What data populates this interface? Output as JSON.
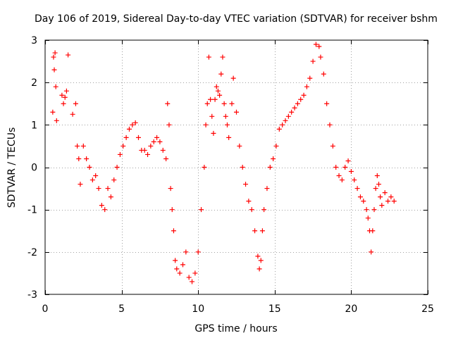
{
  "chart_data": {
    "type": "scatter",
    "title": "Day 106 of 2019, Sidereal Day-to-day VTEC variation (SDTVAR) for receiver bshm",
    "xlabel": "GPS time / hours",
    "ylabel": "SDTVAR / TECUs",
    "xlim": [
      0,
      25
    ],
    "ylim": [
      -3,
      3
    ],
    "xticks": [
      0,
      5,
      10,
      15,
      20,
      25
    ],
    "yticks": [
      -3,
      -2,
      -1,
      0,
      1,
      2,
      3
    ],
    "grid": true,
    "marker": "+",
    "color": "#ff0000",
    "series": [
      {
        "name": "SDTVAR",
        "points": [
          [
            0.5,
            1.3
          ],
          [
            0.55,
            2.6
          ],
          [
            0.6,
            2.3
          ],
          [
            0.65,
            2.7
          ],
          [
            0.7,
            1.9
          ],
          [
            0.75,
            1.1
          ],
          [
            1.1,
            1.7
          ],
          [
            1.2,
            1.5
          ],
          [
            1.3,
            1.65
          ],
          [
            1.4,
            1.8
          ],
          [
            1.5,
            2.65
          ],
          [
            1.8,
            1.25
          ],
          [
            2.0,
            1.5
          ],
          [
            2.1,
            0.5
          ],
          [
            2.2,
            0.2
          ],
          [
            2.3,
            -0.4
          ],
          [
            2.5,
            0.5
          ],
          [
            2.7,
            0.2
          ],
          [
            2.9,
            0.0
          ],
          [
            3.1,
            -0.3
          ],
          [
            3.3,
            -0.2
          ],
          [
            3.5,
            -0.5
          ],
          [
            3.7,
            -0.9
          ],
          [
            3.9,
            -1.0
          ],
          [
            4.1,
            -0.5
          ],
          [
            4.3,
            -0.7
          ],
          [
            4.5,
            -0.3
          ],
          [
            4.7,
            0.0
          ],
          [
            4.9,
            0.3
          ],
          [
            5.1,
            0.5
          ],
          [
            5.3,
            0.7
          ],
          [
            5.5,
            0.9
          ],
          [
            5.7,
            1.0
          ],
          [
            5.9,
            1.05
          ],
          [
            6.1,
            0.7
          ],
          [
            6.3,
            0.4
          ],
          [
            6.5,
            0.4
          ],
          [
            6.7,
            0.3
          ],
          [
            6.9,
            0.5
          ],
          [
            7.1,
            0.6
          ],
          [
            7.3,
            0.7
          ],
          [
            7.5,
            0.6
          ],
          [
            7.7,
            0.4
          ],
          [
            7.9,
            0.2
          ],
          [
            8.0,
            1.5
          ],
          [
            8.1,
            1.0
          ],
          [
            8.2,
            -0.5
          ],
          [
            8.3,
            -1.0
          ],
          [
            8.4,
            -1.5
          ],
          [
            8.5,
            -2.2
          ],
          [
            8.6,
            -2.4
          ],
          [
            8.8,
            -2.5
          ],
          [
            9.0,
            -2.3
          ],
          [
            9.2,
            -2.0
          ],
          [
            9.4,
            -2.6
          ],
          [
            9.6,
            -2.7
          ],
          [
            9.8,
            -2.5
          ],
          [
            10.0,
            -2.0
          ],
          [
            10.2,
            -1.0
          ],
          [
            10.4,
            0.0
          ],
          [
            10.5,
            1.0
          ],
          [
            10.6,
            1.5
          ],
          [
            10.7,
            2.6
          ],
          [
            10.8,
            1.6
          ],
          [
            10.9,
            1.2
          ],
          [
            11.0,
            0.8
          ],
          [
            11.1,
            1.6
          ],
          [
            11.2,
            1.9
          ],
          [
            11.3,
            1.8
          ],
          [
            11.4,
            1.7
          ],
          [
            11.5,
            2.2
          ],
          [
            11.6,
            2.6
          ],
          [
            11.7,
            1.5
          ],
          [
            11.8,
            1.2
          ],
          [
            11.9,
            1.0
          ],
          [
            12.0,
            0.7
          ],
          [
            12.2,
            1.5
          ],
          [
            12.3,
            2.1
          ],
          [
            12.5,
            1.3
          ],
          [
            12.7,
            0.5
          ],
          [
            12.9,
            0.0
          ],
          [
            13.1,
            -0.4
          ],
          [
            13.3,
            -0.8
          ],
          [
            13.5,
            -1.0
          ],
          [
            13.7,
            -1.5
          ],
          [
            13.9,
            -2.1
          ],
          [
            14.0,
            -2.4
          ],
          [
            14.1,
            -2.2
          ],
          [
            14.2,
            -1.5
          ],
          [
            14.3,
            -1.0
          ],
          [
            14.5,
            -0.5
          ],
          [
            14.7,
            0.0
          ],
          [
            14.9,
            0.2
          ],
          [
            15.1,
            0.5
          ],
          [
            15.3,
            0.9
          ],
          [
            15.5,
            1.0
          ],
          [
            15.7,
            1.1
          ],
          [
            15.9,
            1.2
          ],
          [
            16.1,
            1.3
          ],
          [
            16.3,
            1.4
          ],
          [
            16.5,
            1.5
          ],
          [
            16.7,
            1.6
          ],
          [
            16.9,
            1.7
          ],
          [
            17.1,
            1.9
          ],
          [
            17.3,
            2.1
          ],
          [
            17.5,
            2.5
          ],
          [
            17.7,
            2.9
          ],
          [
            17.9,
            2.85
          ],
          [
            18.0,
            2.6
          ],
          [
            18.2,
            2.2
          ],
          [
            18.4,
            1.5
          ],
          [
            18.6,
            1.0
          ],
          [
            18.8,
            0.5
          ],
          [
            19.0,
            0.0
          ],
          [
            19.2,
            -0.2
          ],
          [
            19.4,
            -0.3
          ],
          [
            19.6,
            0.0
          ],
          [
            19.8,
            0.15
          ],
          [
            20.0,
            -0.1
          ],
          [
            20.2,
            -0.3
          ],
          [
            20.4,
            -0.5
          ],
          [
            20.6,
            -0.7
          ],
          [
            20.8,
            -0.8
          ],
          [
            21.0,
            -1.0
          ],
          [
            21.1,
            -1.2
          ],
          [
            21.2,
            -1.5
          ],
          [
            21.3,
            -2.0
          ],
          [
            21.4,
            -1.5
          ],
          [
            21.5,
            -1.0
          ],
          [
            21.6,
            -0.5
          ],
          [
            21.7,
            -0.2
          ],
          [
            21.8,
            -0.4
          ],
          [
            21.9,
            -0.7
          ],
          [
            22.0,
            -0.9
          ],
          [
            22.2,
            -0.6
          ],
          [
            22.4,
            -0.8
          ],
          [
            22.6,
            -0.7
          ],
          [
            22.8,
            -0.8
          ]
        ]
      }
    ]
  }
}
